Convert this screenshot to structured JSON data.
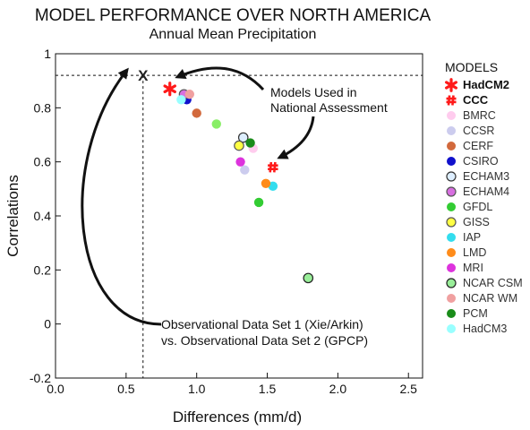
{
  "chart_data": {
    "type": "scatter",
    "title": "MODEL PERFORMANCE OVER NORTH AMERICA",
    "subtitle": "Annual Mean Precipitation",
    "xlabel": "Differences (mm/d)",
    "ylabel": "Correlations",
    "xlim": [
      0,
      2.6
    ],
    "ylim": [
      -0.2,
      1.0
    ],
    "x_ticks": [
      "0.0",
      "0.5",
      "1.0",
      "1.5",
      "2.0",
      "2.5"
    ],
    "y_ticks": [
      "-0.2",
      "0",
      "0.2",
      "0.4",
      "0.6",
      "0.8",
      "1"
    ],
    "legend_title": "MODELS",
    "legend_placement": "right",
    "reference_point": {
      "marker": "X",
      "x": 0.62,
      "y": 0.92,
      "label_line1": "Observational Data Set 1 (Xie/Arkin)",
      "label_line2": "vs. Observational Data Set 2 (GPCP)"
    },
    "annotation": {
      "line1": "Models Used in",
      "line2": "National Assessment"
    },
    "series": [
      {
        "name": "HadCM2",
        "marker": "asterisk",
        "color": "#ff1a1a",
        "bold": true,
        "x": 0.81,
        "y": 0.87
      },
      {
        "name": "CCC",
        "marker": "hash",
        "color": "#ff1a1a",
        "bold": true,
        "x": 1.54,
        "y": 0.58
      },
      {
        "name": "BMRC",
        "color": "#ffccee",
        "x": 1.4,
        "y": 0.65
      },
      {
        "name": "CCSR",
        "color": "#ccccee",
        "x": 1.34,
        "y": 0.57
      },
      {
        "name": "CERF",
        "color": "#d2693c",
        "x": 1.0,
        "y": 0.78
      },
      {
        "name": "CSIRO",
        "color": "#1010cc",
        "x": 0.93,
        "y": 0.83
      },
      {
        "name": "ECHAM3",
        "color": "#ddeeff",
        "outline": "#333333",
        "x": 1.33,
        "y": 0.69
      },
      {
        "name": "ECHAM4",
        "color": "#d76fe0",
        "outline": "#555555",
        "x": 0.91,
        "y": 0.85
      },
      {
        "name": "GFDL",
        "color": "#33cc33",
        "x": 1.44,
        "y": 0.45
      },
      {
        "name": "GISS",
        "color": "#ffff44",
        "outline": "#555555",
        "x": 1.3,
        "y": 0.66
      },
      {
        "name": "IAP",
        "color": "#33ddee",
        "x": 1.54,
        "y": 0.51
      },
      {
        "name": "LMD",
        "color": "#ff8c1a",
        "x": 1.49,
        "y": 0.52
      },
      {
        "name": "MRI",
        "color": "#dd33dd",
        "x": 1.31,
        "y": 0.6
      },
      {
        "name": "NCAR CSM",
        "color": "#99ee99",
        "outline": "#222222",
        "x": 1.79,
        "y": 0.17
      },
      {
        "name": "NCAR WM",
        "color": "#f0a0a0",
        "x": 0.95,
        "y": 0.85
      },
      {
        "name": "PCM",
        "color": "#1a8c1a",
        "x": 1.38,
        "y": 0.67
      },
      {
        "name": "HadCM3",
        "color": "#99ffff",
        "x": 0.89,
        "y": 0.83
      },
      {
        "name": "",
        "color": "#88ee66",
        "x": 1.14,
        "y": 0.74
      }
    ]
  }
}
